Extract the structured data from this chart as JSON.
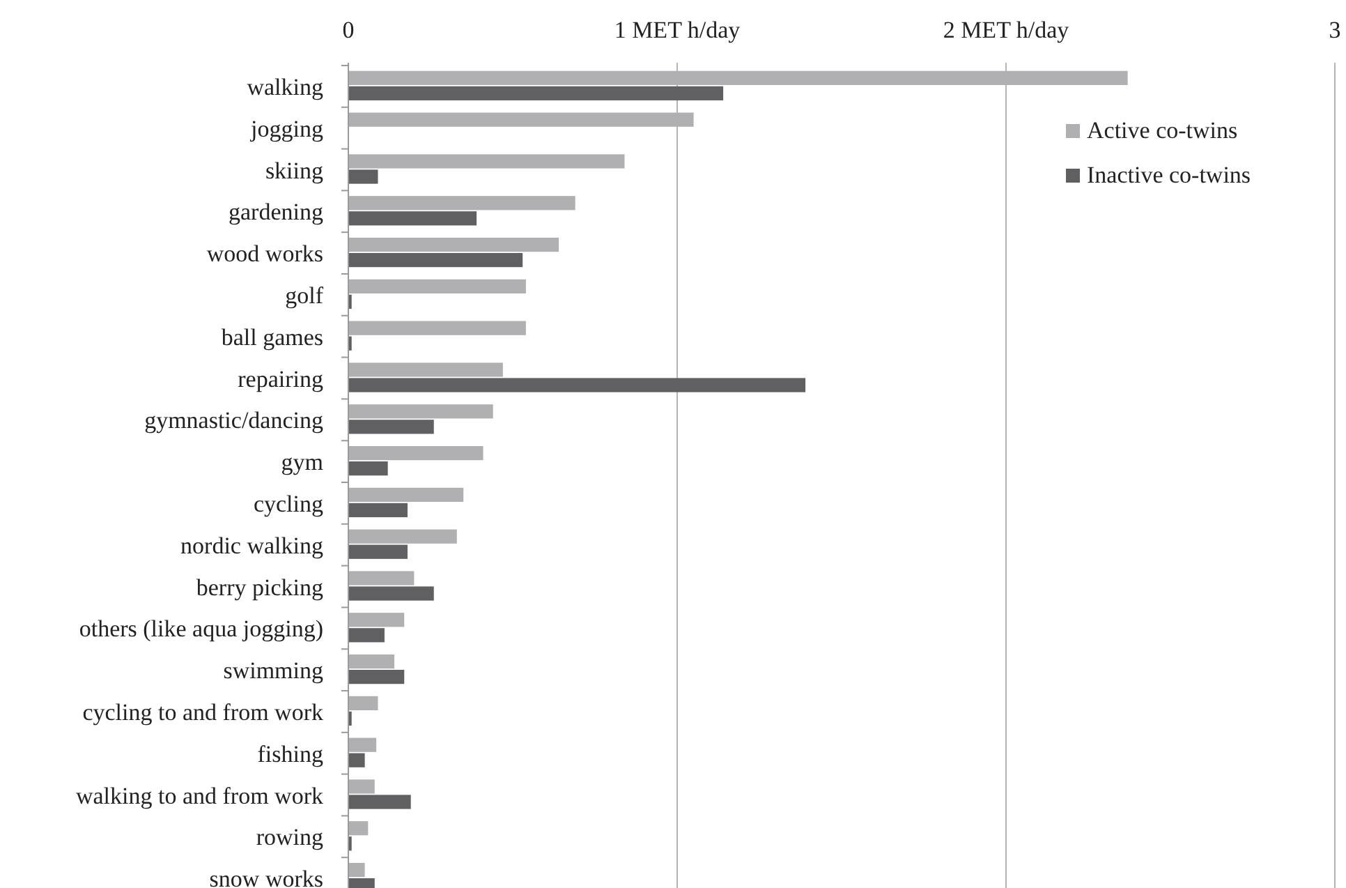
{
  "chart_data": {
    "type": "bar",
    "orientation": "horizontal",
    "categories": [
      "walking",
      "jogging",
      "skiing",
      "gardening",
      "wood works",
      "golf",
      "ball games",
      "repairing",
      "gymnastic/dancing",
      "gym",
      "cycling",
      "nordic walking",
      "berry picking",
      "others (like aqua jogging)",
      "swimming",
      "cycling to and from work",
      "fishing",
      "walking to and from work",
      "rowing",
      "snow works"
    ],
    "series": [
      {
        "name": "Active co-twins",
        "color": "#b0b0b3",
        "values": [
          2.37,
          1.05,
          0.84,
          0.69,
          0.64,
          0.54,
          0.54,
          0.47,
          0.44,
          0.41,
          0.35,
          0.33,
          0.2,
          0.17,
          0.14,
          0.09,
          0.085,
          0.08,
          0.06,
          0.05
        ]
      },
      {
        "name": "Inactive co-twins",
        "color": "#606062",
        "values": [
          1.14,
          0,
          0.09,
          0.39,
          0.53,
          0.01,
          0.01,
          1.39,
          0.26,
          0.12,
          0.18,
          0.18,
          0.26,
          0.11,
          0.17,
          0.01,
          0.05,
          0.19,
          0.01,
          0.08
        ]
      }
    ],
    "xlim": [
      0,
      3
    ],
    "xticks": [
      0,
      {
        "value": 1,
        "label": "1 MET h/day"
      },
      {
        "value": 2,
        "label": "2 MET h/day"
      },
      3
    ],
    "grid": "x",
    "legend": "top right"
  }
}
